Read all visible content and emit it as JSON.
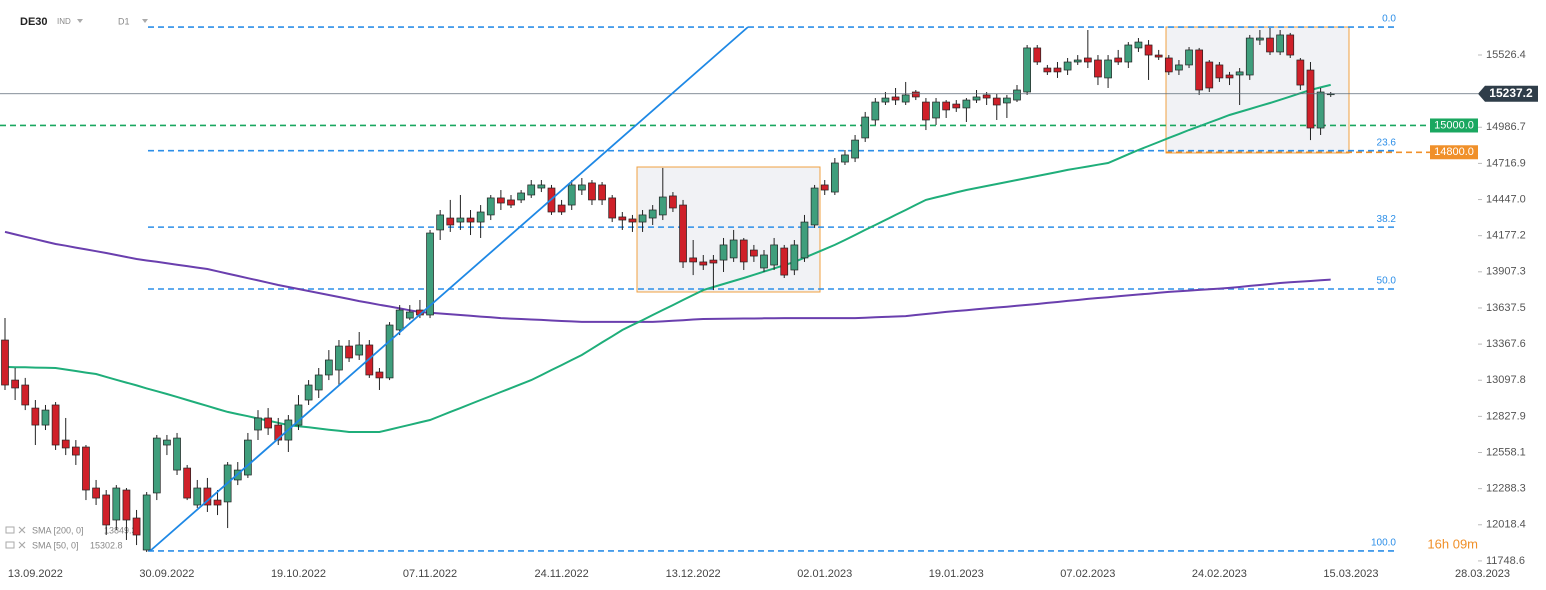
{
  "chart_data": {
    "type": "candlestick",
    "symbol": "DE30",
    "symbol_type": "IND",
    "timeframe": "D1",
    "categories": [
      null,
      null,
      null,
      "13.09.2022",
      null,
      null,
      null,
      null,
      null,
      null,
      null,
      null,
      null,
      null,
      null,
      null,
      "30.09.2022",
      null,
      null,
      null,
      null,
      null,
      null,
      null,
      null,
      null,
      null,
      null,
      null,
      "19.10.2022",
      null,
      null,
      null,
      null,
      null,
      null,
      null,
      null,
      null,
      null,
      null,
      null,
      "07.11.2022",
      null,
      null,
      null,
      null,
      null,
      null,
      null,
      null,
      null,
      null,
      null,
      null,
      "24.11.2022",
      null,
      null,
      null,
      null,
      null,
      null,
      null,
      null,
      null,
      null,
      null,
      null,
      "13.12.2022",
      null,
      null,
      null,
      null,
      null,
      null,
      null,
      null,
      null,
      null,
      null,
      null,
      "02.01.2023",
      null,
      null,
      null,
      null,
      null,
      null,
      null,
      null,
      null,
      null,
      null,
      null,
      "19.01.2023",
      null,
      null,
      null,
      null,
      null,
      null,
      null,
      null,
      null,
      null,
      null,
      null,
      "07.02.2023",
      null,
      null,
      null,
      null,
      null,
      null,
      null,
      null,
      null,
      null,
      null,
      null,
      "24.02.2023",
      null,
      null,
      null,
      null,
      null,
      null,
      null,
      null,
      null,
      null,
      null,
      null,
      "15.03.2023",
      null,
      null,
      null,
      null,
      null,
      null,
      null,
      null,
      null,
      null,
      null,
      null,
      "28.03.2023"
    ],
    "open": [
      13398,
      13099,
      13062,
      12890,
      12763,
      12913,
      12651,
      12599,
      12599,
      12293,
      12241,
      12054,
      12278,
      12069,
      11830,
      12256,
      12614,
      12427,
      12442,
      12166,
      12293,
      12203,
      12189,
      12353,
      12390,
      12726,
      12816,
      12763,
      12651,
      12763,
      12950,
      13025,
      13137,
      13174,
      13353,
      13286,
      13361,
      13159,
      13115,
      13473,
      13562,
      13622,
      13585,
      14220,
      14309,
      14279,
      14309,
      14279,
      14332,
      14459,
      14444,
      14444,
      14481,
      14533,
      14533,
      14406,
      14406,
      14518,
      14571,
      14556,
      14459,
      14317,
      14302,
      14279,
      14309,
      14332,
      14474,
      14406,
      14011,
      13981,
      13995,
      13995,
      14011,
      14145,
      14070,
      13936,
      13958,
      14085,
      13921,
      14011,
      14257,
      14556,
      14503,
      14727,
      14757,
      14907,
      15041,
      15175,
      15213,
      15175,
      15250,
      15175,
      15056,
      15175,
      15160,
      15131,
      15190,
      15228,
      15205,
      15168,
      15190,
      15250,
      15579,
      15429,
      15429,
      15414,
      15474,
      15504,
      15489,
      15355,
      15504,
      15474,
      15579,
      15601,
      15526,
      15504,
      15414,
      15452,
      15564,
      15474,
      15452,
      15377,
      15377,
      15377,
      15638,
      15653,
      15549,
      15676,
      15489,
      15414,
      14981,
      15235,
      null,
      null,
      null,
      null,
      null,
      null,
      null,
      null,
      null,
      null,
      null,
      null,
      null,
      null,
      null
    ],
    "high": [
      13562,
      13189,
      13115,
      12950,
      12913,
      12935,
      12816,
      12651,
      12614,
      12353,
      12278,
      12315,
      12293,
      12129,
      12263,
      12689,
      12689,
      12704,
      12465,
      12353,
      12368,
      12278,
      12487,
      12487,
      12704,
      12875,
      12890,
      12816,
      12838,
      12987,
      13099,
      13189,
      13323,
      13398,
      13398,
      13458,
      13398,
      13189,
      13532,
      13659,
      13659,
      13697,
      14220,
      14369,
      14444,
      14481,
      14369,
      14406,
      14481,
      14518,
      14481,
      14518,
      14593,
      14593,
      14556,
      14444,
      14593,
      14608,
      14593,
      14578,
      14481,
      14354,
      14332,
      14369,
      14406,
      14683,
      14503,
      14444,
      14145,
      14033,
      14033,
      14160,
      14220,
      14160,
      14108,
      14070,
      14160,
      14108,
      14145,
      14332,
      14556,
      14593,
      14757,
      14817,
      14929,
      15101,
      15205,
      15250,
      15280,
      15325,
      15265,
      15205,
      15205,
      15190,
      15190,
      15205,
      15265,
      15250,
      15235,
      15228,
      15302,
      15601,
      15601,
      15452,
      15474,
      15504,
      15526,
      15713,
      15526,
      15526,
      15564,
      15623,
      15653,
      15638,
      15564,
      15526,
      15489,
      15586,
      15579,
      15489,
      15474,
      15400,
      15429,
      15676,
      15713,
      15728,
      15713,
      15691,
      15504,
      15474,
      15280,
      15250,
      null,
      null,
      null,
      null,
      null,
      null,
      null,
      null,
      null,
      null,
      null,
      null,
      null,
      null,
      null
    ],
    "low": [
      13025,
      12950,
      12875,
      12614,
      12726,
      12577,
      12539,
      12465,
      12203,
      12166,
      11942,
      11979,
      11905,
      11867,
      11815,
      12203,
      12539,
      12390,
      12203,
      12144,
      12114,
      12091,
      11994,
      12315,
      12368,
      12651,
      12689,
      12614,
      12562,
      12726,
      12913,
      12965,
      13099,
      13062,
      13234,
      13249,
      13115,
      13025,
      13099,
      13435,
      13547,
      13562,
      13562,
      14145,
      14205,
      14220,
      14182,
      14160,
      14294,
      14369,
      14384,
      14421,
      14459,
      14503,
      14332,
      14332,
      14369,
      14481,
      14406,
      14406,
      14279,
      14220,
      14205,
      14205,
      14257,
      14294,
      14354,
      13936,
      13883,
      13921,
      13771,
      13906,
      13981,
      13921,
      13981,
      13906,
      13921,
      13861,
      13883,
      13981,
      14235,
      14481,
      14481,
      14705,
      14727,
      14877,
      15004,
      15153,
      15153,
      15153,
      15190,
      14966,
      15004,
      15056,
      15101,
      15026,
      15168,
      15153,
      15041,
      15056,
      15175,
      15228,
      15452,
      15377,
      15355,
      15377,
      15452,
      15429,
      15302,
      15280,
      15452,
      15429,
      15549,
      15340,
      15489,
      15377,
      15377,
      15429,
      15228,
      15250,
      15325,
      15302,
      15153,
      15340,
      15601,
      15526,
      15526,
      15504,
      15265,
      14891,
      14929,
      15213,
      null,
      null,
      null,
      null,
      null,
      null,
      null,
      null,
      null,
      null,
      null,
      null,
      null,
      null,
      null
    ],
    "close": [
      13062,
      13040,
      12913,
      12763,
      12875,
      12614,
      12592,
      12539,
      12278,
      12218,
      12017,
      12293,
      12054,
      11942,
      12241,
      12666,
      12651,
      12666,
      12218,
      12293,
      12166,
      12166,
      12465,
      12427,
      12651,
      12816,
      12741,
      12651,
      12801,
      12913,
      13062,
      13137,
      13249,
      13353,
      13264,
      13361,
      13137,
      13115,
      13510,
      13622,
      13607,
      13585,
      14197,
      14332,
      14257,
      14309,
      14279,
      14354,
      14459,
      14421,
      14406,
      14496,
      14556,
      14556,
      14354,
      14354,
      14556,
      14556,
      14444,
      14444,
      14309,
      14294,
      14279,
      14332,
      14369,
      14466,
      14384,
      13981,
      13981,
      13958,
      13973,
      14108,
      14145,
      13981,
      14025,
      14033,
      14108,
      13883,
      14108,
      14279,
      14533,
      14518,
      14720,
      14780,
      14891,
      15063,
      15175,
      15205,
      15190,
      15228,
      15213,
      15041,
      15175,
      15116,
      15131,
      15190,
      15213,
      15205,
      15153,
      15205,
      15265,
      15579,
      15474,
      15400,
      15400,
      15474,
      15489,
      15474,
      15362,
      15489,
      15474,
      15601,
      15623,
      15526,
      15511,
      15400,
      15452,
      15564,
      15265,
      15280,
      15355,
      15355,
      15400,
      15653,
      15653,
      15549,
      15676,
      15526,
      15302,
      14981,
      15250,
      15237.2,
      null,
      null,
      null,
      null,
      null,
      null,
      null,
      null,
      null,
      null,
      null,
      null,
      null,
      null,
      null
    ],
    "up_color": "#3f9e7c",
    "down_color": "#cf2029",
    "ylim": [
      11733,
      15937
    ],
    "yticks": [
      15526.4,
      14986.7,
      14716.9,
      {
        "value": 14447,
        "label": "14447.0"
      },
      14177.2,
      13907.3,
      13637.5,
      13367.6,
      13097.8,
      12827.9,
      12558.1,
      12288.3,
      12018.4,
      11748.6
    ],
    "series": [
      {
        "name": "SMA [200, 0]",
        "color": "#6a3fae",
        "values": [
          14205,
          14187,
          14169,
          14151,
          14133,
          14115,
          14102,
          14088,
          14075,
          14061,
          14048,
          14033,
          14018,
          14003,
          13992,
          13982,
          13971,
          13960,
          13950,
          13939,
          13928,
          13911,
          13894,
          13877,
          13860,
          13843,
          13826,
          13809,
          13794,
          13779,
          13764,
          13749,
          13734,
          13719,
          13704,
          13689,
          13675,
          13661,
          13648,
          13634,
          13620,
          13607,
          13601,
          13596,
          13590,
          13585,
          13579,
          13573,
          13568,
          13562,
          13558,
          13555,
          13551,
          13548,
          13544,
          13540,
          13537,
          13533,
          13533,
          13533,
          13533,
          13533,
          13533,
          13533,
          13533,
          13537,
          13542,
          13546,
          13551,
          13555,
          13556,
          13557,
          13558,
          13559,
          13559,
          13560,
          13561,
          13562,
          13562,
          13562,
          13562,
          13562,
          13562,
          13562,
          13562,
          13565,
          13568,
          13571,
          13574,
          13577,
          13585,
          13592,
          13600,
          13608,
          13615,
          13621,
          13628,
          13634,
          13641,
          13647,
          13654,
          13660,
          13667,
          13675,
          13682,
          13690,
          13697,
          13705,
          13712,
          13718,
          13725,
          13731,
          13738,
          13744,
          13751,
          13757,
          13762,
          13767,
          13772,
          13777,
          13782,
          13787,
          13794,
          13802,
          13809,
          13816,
          13824,
          13829,
          13834,
          13839,
          13844,
          13849.3,
          null,
          null,
          null,
          null,
          null,
          null,
          null,
          null,
          null,
          null,
          null,
          null,
          null,
          null,
          null
        ]
      },
      {
        "name": "SMA [50, 0]",
        "color": "#1fae7a",
        "values": [
          13197,
          13195,
          13194,
          13192,
          13191,
          13189,
          13178,
          13167,
          13155,
          13144,
          13123,
          13101,
          13080,
          13059,
          13037,
          13016,
          12995,
          12973,
          12950,
          12928,
          12906,
          12883,
          12861,
          12845,
          12829,
          12812,
          12796,
          12780,
          12763,
          12754,
          12746,
          12737,
          12728,
          12720,
          12711,
          12711,
          12711,
          12711,
          12729,
          12747,
          12765,
          12783,
          12801,
          12831,
          12861,
          12890,
          12920,
          12950,
          12980,
          13010,
          13039,
          13069,
          13099,
          13136,
          13174,
          13211,
          13249,
          13286,
          13333,
          13380,
          13426,
          13473,
          13510,
          13547,
          13585,
          13622,
          13659,
          13697,
          13734,
          13771,
          13794,
          13816,
          13839,
          13861,
          13885,
          13909,
          13933,
          13957,
          13981,
          14013,
          14045,
          14076,
          14108,
          14145,
          14182,
          14220,
          14257,
          14294,
          14332,
          14369,
          14407,
          14444,
          14463,
          14481,
          14500,
          14518,
          14533,
          14548,
          14563,
          14578,
          14593,
          14608,
          14623,
          14638,
          14653,
          14668,
          14681,
          14694,
          14707,
          14720,
          14752,
          14785,
          14817,
          14847,
          14877,
          14907,
          14936,
          14966,
          14994,
          15022,
          15050,
          15078,
          15101,
          15123,
          15146,
          15168,
          15192,
          15216,
          15241,
          15265,
          15284,
          15302.8,
          null,
          null,
          null,
          null,
          null,
          null,
          null,
          null,
          null,
          null,
          null,
          null,
          null,
          null,
          null
        ]
      }
    ],
    "fibonacci": {
      "levels": [
        "0.0",
        "23.6",
        "38.2",
        "50.0",
        "100.0"
      ],
      "prices": [
        15735,
        14812,
        14241,
        13779,
        11823
      ],
      "color": "#2d8fe8"
    },
    "levels": [
      {
        "value": 15000,
        "label": "15000.0",
        "color": "#1aa760"
      },
      {
        "value": 14800,
        "label": "14800.0",
        "color": "#f0902a"
      }
    ],
    "countdown": "16h 09m"
  }
}
